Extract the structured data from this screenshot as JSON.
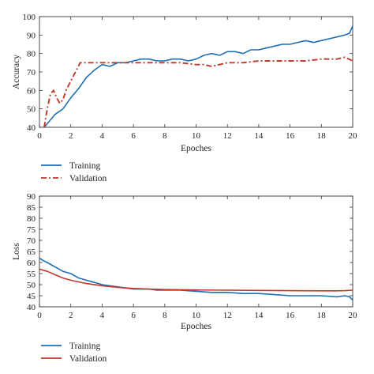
{
  "chart_data": [
    {
      "type": "line",
      "xlabel": "Epoches",
      "ylabel": "Accuracy",
      "xlim": [
        0,
        20
      ],
      "ylim": [
        40,
        100
      ],
      "xticks": [
        0,
        2,
        4,
        6,
        8,
        10,
        12,
        14,
        16,
        18,
        20
      ],
      "yticks": [
        40,
        50,
        60,
        70,
        80,
        90,
        100
      ],
      "grid": false,
      "legend_position": "below",
      "series": [
        {
          "name": "Training",
          "color": "#1f6fb4",
          "style": "solid",
          "x": [
            0.3,
            0.6,
            1.0,
            1.5,
            2.0,
            2.5,
            3.0,
            3.5,
            4.0,
            4.5,
            5.0,
            5.5,
            6.0,
            6.5,
            7.0,
            7.5,
            8.0,
            8.5,
            9.0,
            9.5,
            10.0,
            10.5,
            11.0,
            11.5,
            12.0,
            12.5,
            13.0,
            13.5,
            14.0,
            14.5,
            15.0,
            15.5,
            16.0,
            16.5,
            17.0,
            17.5,
            18.0,
            18.5,
            19.0,
            19.5,
            19.8,
            20.0
          ],
          "y": [
            40,
            43,
            47,
            50,
            56,
            61,
            67,
            71,
            74,
            73,
            75,
            75,
            76,
            77,
            77,
            76,
            76,
            77,
            77,
            76,
            77,
            79,
            80,
            79,
            81,
            81,
            80,
            82,
            82,
            83,
            84,
            85,
            85,
            86,
            87,
            86,
            87,
            88,
            89,
            90,
            91,
            95
          ]
        },
        {
          "name": "Validation",
          "color": "#c0392b",
          "style": "dashdot",
          "x": [
            0.3,
            0.5,
            0.7,
            0.9,
            1.1,
            1.3,
            1.5,
            1.7,
            2.0,
            2.3,
            2.6,
            3.0,
            3.5,
            4.0,
            5.0,
            6.0,
            7.0,
            8.0,
            9.0,
            10.0,
            10.5,
            11.0,
            11.5,
            12.0,
            13.0,
            14.0,
            15.0,
            16.0,
            17.0,
            18.0,
            18.5,
            19.0,
            19.5,
            20.0
          ],
          "y": [
            40,
            50,
            58,
            60,
            56,
            53,
            55,
            60,
            65,
            70,
            75,
            75,
            75,
            75,
            75,
            75,
            75,
            75,
            75,
            74,
            74,
            73,
            74,
            75,
            75,
            76,
            76,
            76,
            76,
            77,
            77,
            77,
            78,
            76
          ]
        }
      ]
    },
    {
      "type": "line",
      "xlabel": "Epoches",
      "ylabel": "Loss",
      "xlim": [
        0,
        20
      ],
      "ylim": [
        40,
        90
      ],
      "xticks": [
        0,
        2,
        4,
        6,
        8,
        10,
        12,
        14,
        16,
        18,
        20
      ],
      "yticks": [
        40,
        45,
        50,
        55,
        60,
        65,
        70,
        75,
        80,
        85,
        90
      ],
      "grid": false,
      "legend_position": "below",
      "series": [
        {
          "name": "Training",
          "color": "#1f6fb4",
          "style": "solid",
          "x": [
            0.0,
            0.2,
            0.5,
            1.0,
            1.5,
            2.0,
            2.5,
            3.0,
            3.5,
            4.0,
            4.5,
            5.0,
            5.5,
            6.0,
            6.5,
            7.0,
            7.5,
            8.0,
            9.0,
            10.0,
            11.0,
            12.0,
            13.0,
            14.0,
            15.0,
            16.0,
            17.0,
            18.0,
            19.0,
            19.5,
            19.8,
            20.0
          ],
          "y": [
            62,
            61,
            60,
            58,
            56,
            55,
            53,
            52,
            51,
            50,
            49.5,
            49,
            48.5,
            48,
            48,
            48,
            47.5,
            47.5,
            47.5,
            47,
            46.5,
            46.5,
            46,
            46,
            45.5,
            45,
            45,
            45,
            44.5,
            45,
            44.5,
            43
          ]
        },
        {
          "name": "Validation",
          "color": "#c0392b",
          "style": "solid",
          "x": [
            0.0,
            0.5,
            1.0,
            1.5,
            2.0,
            3.0,
            4.0,
            5.0,
            6.0,
            7.0,
            8.0,
            10.0,
            12.0,
            14.0,
            16.0,
            18.0,
            19.0,
            19.5,
            20.0
          ],
          "y": [
            57,
            56,
            54.5,
            53,
            52,
            50.5,
            49.5,
            48.8,
            48.3,
            48,
            47.8,
            47.6,
            47.5,
            47.4,
            47.3,
            47.2,
            47.2,
            47.3,
            47.5
          ]
        }
      ]
    }
  ]
}
